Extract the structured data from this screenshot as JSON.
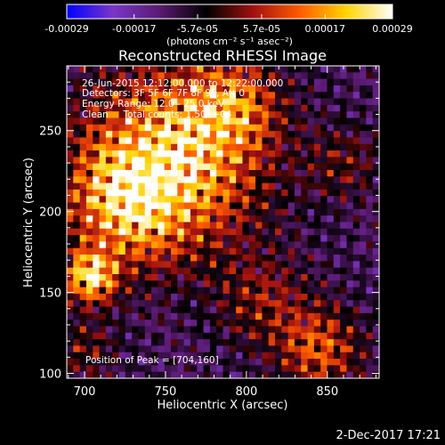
{
  "chart_data": {
    "type": "heatmap",
    "title": "Reconstructed RHESSI Image",
    "xlabel": "Heliocentric X (arcsec)",
    "ylabel": "Heliocentric Y (arcsec)",
    "xlim": [
      689,
      882
    ],
    "ylim": [
      97,
      290
    ],
    "xticks": [
      700,
      750,
      800,
      850
    ],
    "yticks": [
      100,
      150,
      200,
      250
    ],
    "colorbar": {
      "range": [
        -0.00029,
        0.00029
      ],
      "ticks": [
        "-0.00029",
        "-0.00017",
        "-5.7e-05",
        "5.7e-05",
        "0.00017",
        "0.00029"
      ],
      "tick_values": [
        -0.00029,
        -0.00017,
        -5.7e-05,
        5.7e-05,
        0.00017,
        0.00029
      ],
      "unit_label": "(photons cm⁻² s⁻¹ asec⁻²)",
      "colors": [
        "#0000ff",
        "#7a36c8",
        "#5a1a70",
        "#000000",
        "#a01010",
        "#ff5a00",
        "#ffd400",
        "#ffffff"
      ]
    },
    "annotations": [
      "26-Jun-2015 12:12:00.000 to 12:22:00.000",
      "Detectors: 3F 5F 6F 7F 8F 9F, Att 0",
      "Energy Range: 12.0 - 25.0 keV",
      "Clean     Total counts: 1.50E+04"
    ],
    "peak": {
      "label": "Position of Peak = [704,160]",
      "x": 704,
      "y": 160
    },
    "sources": [
      {
        "x": 754,
        "y": 232,
        "amp": 1.0,
        "sigma": 38
      },
      {
        "x": 704,
        "y": 160,
        "amp": 1.05,
        "sigma": 11
      },
      {
        "x": 725,
        "y": 205,
        "amp": 0.7,
        "sigma": 24
      },
      {
        "x": 790,
        "y": 265,
        "amp": 0.55,
        "sigma": 20
      },
      {
        "x": 845,
        "y": 115,
        "amp": 0.6,
        "sigma": 18
      },
      {
        "x": 810,
        "y": 145,
        "amp": 0.35,
        "sigma": 20
      },
      {
        "x": 700,
        "y": 115,
        "amp": 0.3,
        "sigma": 14
      },
      {
        "x": 860,
        "y": 230,
        "amp": 0.28,
        "sigma": 16
      }
    ]
  },
  "footer": {
    "date": "2-Dec-2017 17:21"
  }
}
